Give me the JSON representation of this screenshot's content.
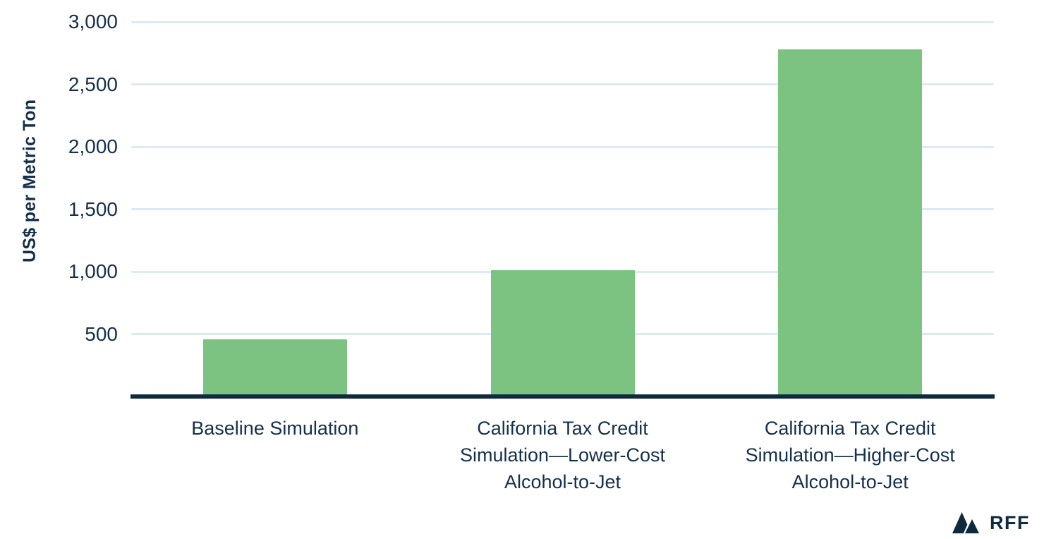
{
  "chart_data": {
    "type": "bar",
    "title": "",
    "xlabel": "",
    "ylabel": "US$ per Metric Ton",
    "ylim": [
      0,
      3000
    ],
    "yticks": [
      500,
      1000,
      1500,
      2000,
      2500,
      3000
    ],
    "ytick_labels": [
      "500",
      "1,000",
      "1,500",
      "2,000",
      "2,500",
      "3,000"
    ],
    "grid": "horizontal gridlines on, light blue",
    "legend": "none",
    "categories": [
      "Baseline Simulation",
      "California Tax Credit Simulation—Lower-Cost Alcohol-to-Jet",
      "California Tax Credit Simulation—Higher-Cost Alcohol-to-Jet"
    ],
    "category_lines": [
      [
        "Baseline Simulation"
      ],
      [
        "California Tax Credit",
        "Simulation—Lower-Cost",
        "Alcohol-to-Jet"
      ],
      [
        "California Tax Credit",
        "Simulation—Higher-Cost",
        "Alcohol-to-Jet"
      ]
    ],
    "values": [
      460,
      1010,
      2780
    ]
  },
  "branding": {
    "logo_text": "RFF",
    "logo_icon": "twin-mountain-peaks"
  },
  "colors": {
    "ink": "#15304b",
    "axis": "#0f2a3d",
    "grid": "#dce9f7",
    "bar": "#7cc382",
    "background": "#ffffff"
  }
}
